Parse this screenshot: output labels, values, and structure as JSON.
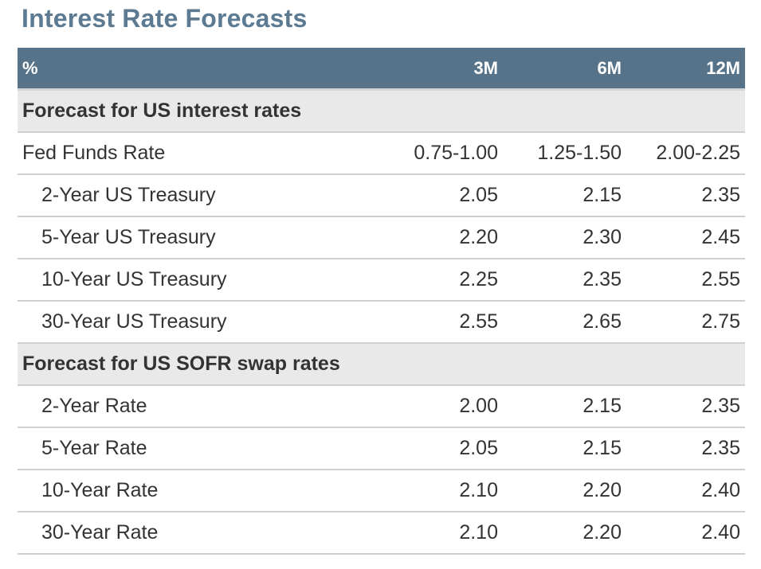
{
  "title": "Interest Rate Forecasts",
  "table": {
    "header": {
      "label": "%",
      "columns": [
        "3M",
        "6M",
        "12M"
      ]
    },
    "sections": [
      {
        "heading": "Forecast for US interest rates",
        "rows": [
          {
            "label": "Fed Funds Rate",
            "values": [
              "0.75-1.00",
              "1.25-1.50",
              "2.00-2.25"
            ]
          },
          {
            "label": "2-Year US Treasury",
            "values": [
              "2.05",
              "2.15",
              "2.35"
            ]
          },
          {
            "label": "5-Year US Treasury",
            "values": [
              "2.20",
              "2.30",
              "2.45"
            ]
          },
          {
            "label": "10-Year US Treasury",
            "values": [
              "2.25",
              "2.35",
              "2.55"
            ]
          },
          {
            "label": "30-Year US Treasury",
            "values": [
              "2.55",
              "2.65",
              "2.75"
            ]
          }
        ]
      },
      {
        "heading": "Forecast for US SOFR swap rates",
        "rows": [
          {
            "label": "2-Year Rate",
            "values": [
              "2.00",
              "2.15",
              "2.35"
            ]
          },
          {
            "label": "5-Year Rate",
            "values": [
              "2.05",
              "2.15",
              "2.35"
            ]
          },
          {
            "label": "10-Year Rate",
            "values": [
              "2.10",
              "2.20",
              "2.40"
            ]
          },
          {
            "label": "30-Year Rate",
            "values": [
              "2.10",
              "2.20",
              "2.40"
            ]
          }
        ]
      }
    ]
  }
}
